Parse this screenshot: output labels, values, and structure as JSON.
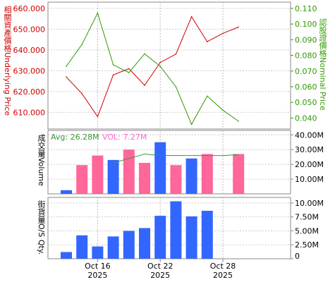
{
  "chart_data": [
    {
      "type": "line",
      "panel": "price",
      "left_axis": {
        "label": "相關資產價格Underlying Price",
        "ticks": [
          "660.000",
          "650.000",
          "640.000",
          "630.000",
          "620.000",
          "610.000"
        ],
        "tick_values": [
          660,
          650,
          640,
          630,
          620,
          610
        ],
        "ylim": [
          602,
          663
        ],
        "color": "#cc0000"
      },
      "right_axis": {
        "label": "認股證價格Nominal Price",
        "ticks": [
          "0.110",
          "0.100",
          "0.090",
          "0.080",
          "0.070",
          "0.060",
          "0.050",
          "0.040"
        ],
        "tick_values": [
          0.11,
          0.1,
          0.09,
          0.08,
          0.07,
          0.06,
          0.05,
          0.04
        ],
        "ylim": [
          0.033,
          0.114
        ],
        "color": "#339900"
      },
      "x_index": [
        0,
        1,
        2,
        3,
        4,
        5,
        6,
        7,
        8,
        9,
        10,
        11,
        12
      ],
      "series": [
        {
          "name": "Underlying Price",
          "axis": "left",
          "color": "#cc0000",
          "values": [
            627,
            619,
            608,
            628,
            631,
            623,
            634,
            638,
            656,
            644,
            648,
            651,
            null
          ]
        },
        {
          "name": "Nominal Price",
          "axis": "right",
          "color": "#339900",
          "values": [
            0.073,
            0.087,
            0.107,
            0.074,
            0.069,
            0.081,
            0.073,
            0.06,
            0.036,
            0.054,
            0.045,
            0.038,
            null
          ]
        }
      ],
      "grid": true
    },
    {
      "type": "bar",
      "panel": "volume",
      "avg_label": "Avg: 26.28M",
      "vol_label": "VOL: 7.27M",
      "left_axis_label": "成交量Volume",
      "right_ticks": [
        "40.00M",
        "30.00M",
        "20.00M",
        "10.00M"
      ],
      "right_tick_values": [
        40,
        30,
        20,
        10
      ],
      "ylim": [
        0,
        43
      ],
      "unit": "M",
      "values": [
        2.5,
        19.5,
        26,
        23,
        30,
        21,
        35,
        19.5,
        24,
        27,
        null,
        27
      ],
      "colors": [
        "#3366ff",
        "#ff6699",
        "#ff6699",
        "#3366ff",
        "#ff6699",
        "#ff6699",
        "#3366ff",
        "#ff6699",
        "#3366ff",
        "#ff6699",
        null,
        "#ff6699"
      ],
      "avg_line": [
        null,
        null,
        null,
        21,
        24,
        27,
        26,
        26,
        26,
        26,
        26,
        26.5
      ],
      "avg_color": "#339933",
      "grid": true
    },
    {
      "type": "bar",
      "panel": "outstanding",
      "left_axis_label": "街貨量O/S Qty.",
      "right_ticks": [
        "10.00M",
        "7.50M",
        "5.00M",
        "2.50M",
        "0"
      ],
      "right_tick_values": [
        10,
        7.5,
        5,
        2.5,
        0
      ],
      "ylim": [
        0,
        11
      ],
      "unit": "M",
      "values": [
        1.2,
        4.2,
        2.2,
        4.0,
        5.0,
        5.5,
        7.7,
        10.3,
        7.6,
        8.6,
        null,
        null
      ],
      "color": "#3366ff",
      "grid": true
    }
  ],
  "x_axis": {
    "dates": [
      {
        "index": 2,
        "month_day": "Oct 16",
        "year": "2025"
      },
      {
        "index": 6,
        "month_day": "Oct 22",
        "year": "2025"
      },
      {
        "index": 10,
        "month_day": "Oct 28",
        "year": "2025"
      }
    ]
  }
}
